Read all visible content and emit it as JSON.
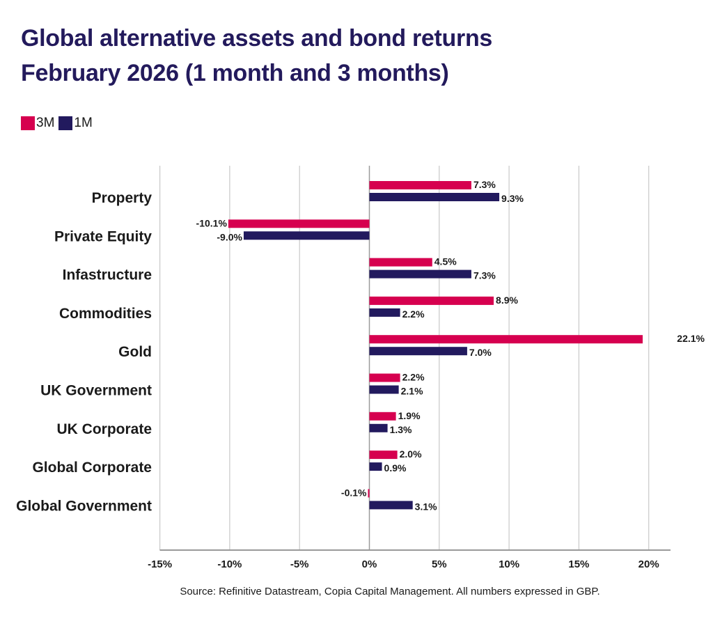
{
  "chart_data": {
    "type": "bar",
    "orientation": "horizontal",
    "title_lines": [
      "Global alternative assets and bond returns",
      "February 2026 (1 month and 3 months)"
    ],
    "categories": [
      "Property",
      "Private Equity",
      "Infastructure",
      "Commodities",
      "Gold",
      "UK Government",
      "UK Corporate",
      "Global Corporate",
      "Global Government"
    ],
    "series": [
      {
        "name": "3M",
        "color": "#d6004f",
        "values": [
          7.3,
          -10.1,
          4.5,
          8.9,
          22.1,
          2.2,
          1.9,
          2.0,
          -0.1
        ],
        "labels": [
          "7.3%",
          "-10.1%",
          "4.5%",
          "8.9%",
          "22.1%",
          "2.2%",
          "1.9%",
          "2.0%",
          "-0.1%"
        ]
      },
      {
        "name": "1M",
        "color": "#221a5e",
        "values": [
          9.3,
          -9.0,
          7.3,
          2.2,
          7.0,
          2.1,
          1.3,
          0.9,
          3.1
        ],
        "labels": [
          "9.3%",
          "-9.0%",
          "7.3%",
          "2.2%",
          "7.0%",
          "2.1%",
          "1.3%",
          "0.9%",
          "3.1%"
        ]
      }
    ],
    "xlabel": "",
    "ylabel": "",
    "xlim": [
      -15,
      20
    ],
    "xticks": [
      -15,
      -10,
      -5,
      0,
      5,
      10,
      15,
      20
    ],
    "xtick_labels": [
      "-15%",
      "-10%",
      "-5%",
      "0%",
      "5%",
      "10%",
      "15%",
      "20%"
    ],
    "grid": "vertical",
    "legend_position": "top-left"
  },
  "legend": [
    {
      "label": "3M",
      "color": "#d6004f"
    },
    {
      "label": "1M",
      "color": "#221a5e"
    }
  ],
  "source_note": "Source: Refinitive Datastream, Copia Capital Management. All numbers expressed in GBP."
}
